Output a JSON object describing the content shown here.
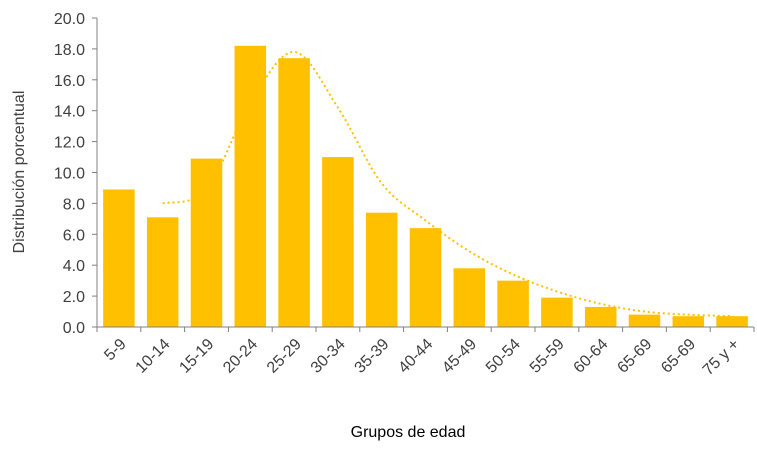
{
  "chart_data": {
    "type": "bar",
    "xlabel": "Grupos de edad",
    "ylabel": "Distribución porcentual",
    "ylim": [
      0,
      20
    ],
    "yticks": [
      "0.0",
      "2.0",
      "4.0",
      "6.0",
      "8.0",
      "10.0",
      "12.0",
      "14.0",
      "16.0",
      "18.0",
      "20.0"
    ],
    "categories": [
      "5-9",
      "10-14",
      "15-19",
      "20-24",
      "25-29",
      "30-34",
      "35-39",
      "40-44",
      "45-49",
      "50-54",
      "55-59",
      "60-64",
      "65-69",
      "65-69",
      "75 y +"
    ],
    "values": [
      8.9,
      7.1,
      10.9,
      18.2,
      17.4,
      11.0,
      7.4,
      6.4,
      3.8,
      3.0,
      1.9,
      1.3,
      0.8,
      0.7,
      0.7
    ],
    "trendline": {
      "style": "dotted",
      "values": [
        null,
        8.0,
        8.9,
        14.5,
        17.8,
        14.2,
        9.3,
        6.9,
        4.9,
        3.4,
        2.3,
        1.5,
        1.0,
        0.8,
        0.7
      ]
    },
    "grid": false,
    "legend": "none",
    "colors": {
      "bar": "#FFC000",
      "trendline": "#FFC000",
      "axis": "#808080",
      "text": "#404040"
    }
  }
}
